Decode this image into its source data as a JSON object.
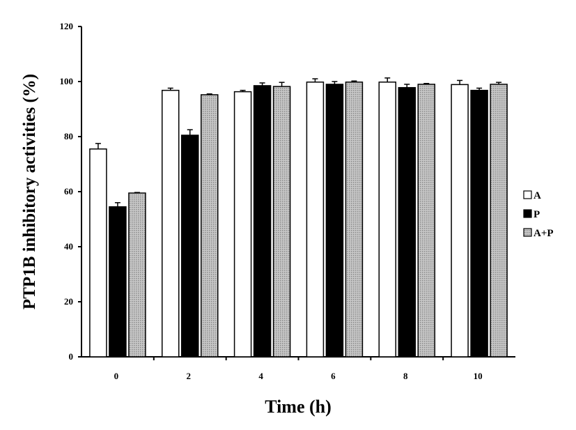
{
  "chart_data": {
    "type": "bar",
    "title": "",
    "xlabel": "Time (h)",
    "ylabel": "PTP1B inhibitory activities (%)",
    "categories": [
      "0",
      "2",
      "4",
      "6",
      "8",
      "10"
    ],
    "ylim": [
      0,
      120
    ],
    "yticks": [
      "0",
      "20",
      "40",
      "60",
      "80",
      "100",
      "120"
    ],
    "grid": false,
    "legend_position": "right",
    "series": [
      {
        "name": "A",
        "values": [
          75.5,
          96.8,
          96.3,
          99.8,
          99.8,
          98.9
        ],
        "errors": [
          2.0,
          0.8,
          0.5,
          1.2,
          1.5,
          1.5
        ],
        "fill": "white"
      },
      {
        "name": "P",
        "values": [
          54.5,
          80.5,
          98.5,
          99.0,
          97.8,
          96.8
        ],
        "errors": [
          1.5,
          2.0,
          1.0,
          1.0,
          1.2,
          0.8
        ],
        "fill": "black"
      },
      {
        "name": "A+P",
        "values": [
          59.5,
          95.2,
          98.2,
          99.8,
          99.0,
          99.0
        ],
        "errors": [
          0.2,
          0.3,
          1.5,
          0.4,
          0.3,
          0.7
        ],
        "fill": "dotted-gray"
      }
    ]
  },
  "colors": {
    "bar_white": "#ffffff",
    "bar_black": "#000000",
    "bar_gray": "#b4b4b4",
    "bar_outline": "#000000"
  }
}
